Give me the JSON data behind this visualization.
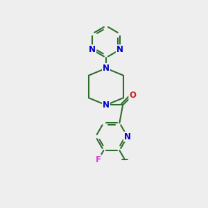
{
  "bg_color": "#eeeeee",
  "bond_color": "#2d6e2d",
  "bond_width": 1.5,
  "dbo": 0.06,
  "atom_colors": {
    "N": "#0000cc",
    "F": "#cc44cc",
    "O": "#cc2222",
    "C": "#2d6e2d"
  },
  "fs": 8.5
}
